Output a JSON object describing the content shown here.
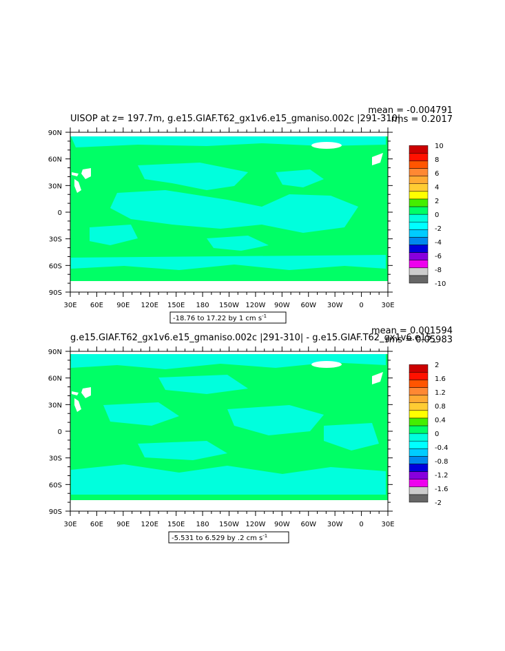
{
  "colors": {
    "ocean_base": "#00FF66",
    "ocean_alt": "#00FFDD",
    "land": "#FFFFFF",
    "frame": "#000000",
    "colorbar": [
      "#666666",
      "#CCCCCC",
      "#EE00EE",
      "#8800DD",
      "#0000DD",
      "#0088EE",
      "#00CCFF",
      "#00FFFF",
      "#00FFDD",
      "#00FF66",
      "#44EE00",
      "#FFFF00",
      "#FFCC33",
      "#FFAA33",
      "#FF8833",
      "#FF5500",
      "#FF1100",
      "#CC0000"
    ]
  },
  "chart_data": [
    {
      "type": "heatmap",
      "title": "UISOP at z= 197.7m, g.e15.GIAF.T62_gx1v6.e15_gmaniso.002c |291-310|",
      "mean_label": "mean = -0.004791",
      "rms_label": "rms = 0.2017",
      "contour_info": "-18.76 to 17.22 by 1 cm s",
      "contour_exp": "-1",
      "x_ticks": [
        "30E",
        "60E",
        "90E",
        "120E",
        "150E",
        "180",
        "150W",
        "120W",
        "90W",
        "60W",
        "30W",
        "0",
        "30E"
      ],
      "y_ticks": [
        "90N",
        "60N",
        "30N",
        "0",
        "30S",
        "60S",
        "90S"
      ],
      "xlim": [
        30,
        390
      ],
      "ylim": [
        -90,
        90
      ],
      "colorbar_labels": [
        "10",
        "8",
        "6",
        "4",
        "2",
        "0",
        "-2",
        "-4",
        "-6",
        "-8",
        "-10"
      ]
    },
    {
      "type": "heatmap",
      "title": "g.e15.GIAF.T62_gx1v6.e15_gmaniso.002c |291-310| - g.e15.GIAF.T62_gx1v6.e15_",
      "mean_label": "mean = 0.001594",
      "rms_label": "rms = 0.05983",
      "contour_info": "-5.531 to 6.529 by .2 cm s",
      "contour_exp": "-1",
      "x_ticks": [
        "30E",
        "60E",
        "90E",
        "120E",
        "150E",
        "180",
        "150W",
        "120W",
        "90W",
        "60W",
        "30W",
        "0",
        "30E"
      ],
      "y_ticks": [
        "90N",
        "60N",
        "30N",
        "0",
        "30S",
        "60S",
        "90S"
      ],
      "xlim": [
        30,
        390
      ],
      "ylim": [
        -90,
        90
      ],
      "colorbar_labels": [
        "2",
        "1.6",
        "1.2",
        "0.8",
        "0.4",
        "0",
        "-0.4",
        "-0.8",
        "-1.2",
        "-1.6",
        "-2"
      ]
    }
  ]
}
